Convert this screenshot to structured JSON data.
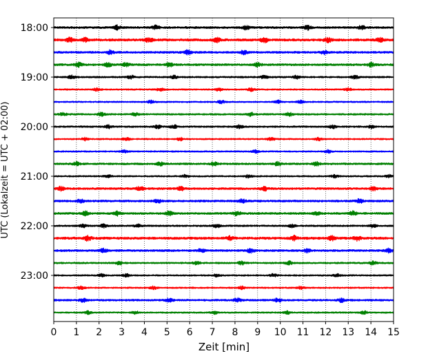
{
  "chart_data": {
    "type": "line",
    "title": "",
    "xlabel": "Zeit  [min]",
    "ylabel": "UTC (Lokalzeit = UTC + 02:00)",
    "xlim": [
      0,
      15
    ],
    "x_ticks": [
      "0",
      "1",
      "2",
      "3",
      "4",
      "5",
      "6",
      "7",
      "8",
      "9",
      "10",
      "11",
      "12",
      "13",
      "14",
      "15"
    ],
    "y_tick_labels": [
      "18:00",
      "19:00",
      "20:00",
      "21:00",
      "22:00",
      "23:00"
    ],
    "grid": "vertical dotted lines at each minute",
    "trace_interval_min": 15,
    "trace_colors": [
      "#000000",
      "#ff0000",
      "#0000ff",
      "#008000"
    ],
    "series": [
      {
        "start": "18:00",
        "color": "#000000",
        "amplitude": 0.3,
        "bursts": [
          2.8,
          4.5,
          8.5,
          11.2,
          13.6
        ]
      },
      {
        "start": "18:15",
        "color": "#ff0000",
        "amplitude": 0.35,
        "bursts": [
          0.7,
          1.4,
          4.2,
          7.2,
          9.3,
          12.1,
          14.4
        ]
      },
      {
        "start": "18:30",
        "color": "#0000ff",
        "amplitude": 0.3,
        "bursts": [
          2.5,
          5.9,
          8.4,
          11.9
        ]
      },
      {
        "start": "18:45",
        "color": "#008000",
        "amplitude": 0.3,
        "bursts": [
          1.1,
          2.4,
          3.2,
          5.1,
          9.0,
          14.0
        ]
      },
      {
        "start": "19:00",
        "color": "#000000",
        "amplitude": 0.25,
        "bursts": [
          0.8,
          3.4,
          5.3,
          9.3,
          10.7,
          13.3
        ]
      },
      {
        "start": "19:15",
        "color": "#ff0000",
        "amplitude": 0.22,
        "bursts": [
          1.9,
          4.7,
          7.3,
          8.7,
          13.0
        ]
      },
      {
        "start": "19:30",
        "color": "#0000ff",
        "amplitude": 0.22,
        "bursts": [
          4.3,
          7.4,
          9.9,
          10.9
        ]
      },
      {
        "start": "19:45",
        "color": "#008000",
        "amplitude": 0.25,
        "bursts": [
          0.4,
          2.1,
          3.6,
          8.7,
          10.4
        ]
      },
      {
        "start": "20:00",
        "color": "#000000",
        "amplitude": 0.25,
        "bursts": [
          2.4,
          4.6,
          5.3,
          8.2,
          12.3,
          14.0
        ]
      },
      {
        "start": "20:15",
        "color": "#ff0000",
        "amplitude": 0.22,
        "bursts": [
          1.4,
          3.2,
          5.6,
          9.6,
          11.7
        ]
      },
      {
        "start": "20:30",
        "color": "#0000ff",
        "amplitude": 0.22,
        "bursts": [
          3.1,
          8.9,
          12.1
        ]
      },
      {
        "start": "20:45",
        "color": "#008000",
        "amplitude": 0.28,
        "bursts": [
          1.0,
          4.7,
          7.1,
          9.9,
          11.6
        ]
      },
      {
        "start": "21:00",
        "color": "#000000",
        "amplitude": 0.22,
        "bursts": [
          2.4,
          5.8,
          8.6,
          12.4,
          14.8
        ]
      },
      {
        "start": "21:15",
        "color": "#ff0000",
        "amplitude": 0.3,
        "bursts": [
          0.3,
          3.8,
          5.6,
          9.3,
          14.1
        ]
      },
      {
        "start": "21:30",
        "color": "#0000ff",
        "amplitude": 0.3,
        "bursts": [
          1.2,
          4.6,
          8.3,
          13.5
        ]
      },
      {
        "start": "21:45",
        "color": "#008000",
        "amplitude": 0.3,
        "bursts": [
          1.4,
          2.8,
          5.1,
          8.1,
          11.6,
          13.2
        ]
      },
      {
        "start": "22:00",
        "color": "#000000",
        "amplitude": 0.25,
        "bursts": [
          1.3,
          2.2,
          3.7,
          7.2,
          10.5,
          14.1
        ]
      },
      {
        "start": "22:15",
        "color": "#ff0000",
        "amplitude": 0.35,
        "bursts": [
          1.5,
          7.8,
          10.6,
          12.3,
          13.4
        ]
      },
      {
        "start": "22:30",
        "color": "#0000ff",
        "amplitude": 0.3,
        "bursts": [
          2.2,
          6.5,
          8.7,
          11.2,
          14.8
        ]
      },
      {
        "start": "22:45",
        "color": "#008000",
        "amplitude": 0.25,
        "bursts": [
          2.9,
          6.3,
          8.3,
          10.4,
          14.1
        ]
      },
      {
        "start": "23:00",
        "color": "#000000",
        "amplitude": 0.22,
        "bursts": [
          2.1,
          3.2,
          7.2,
          9.7,
          12.5
        ]
      },
      {
        "start": "23:15",
        "color": "#ff0000",
        "amplitude": 0.22,
        "bursts": [
          1.2,
          4.4,
          8.3,
          10.9
        ]
      },
      {
        "start": "23:30",
        "color": "#0000ff",
        "amplitude": 0.28,
        "bursts": [
          1.3,
          5.1,
          8.1,
          9.9,
          12.7
        ]
      },
      {
        "start": "23:45",
        "color": "#008000",
        "amplitude": 0.22,
        "bursts": [
          1.5,
          3.6,
          7.1,
          10.3,
          13.7
        ]
      }
    ]
  }
}
